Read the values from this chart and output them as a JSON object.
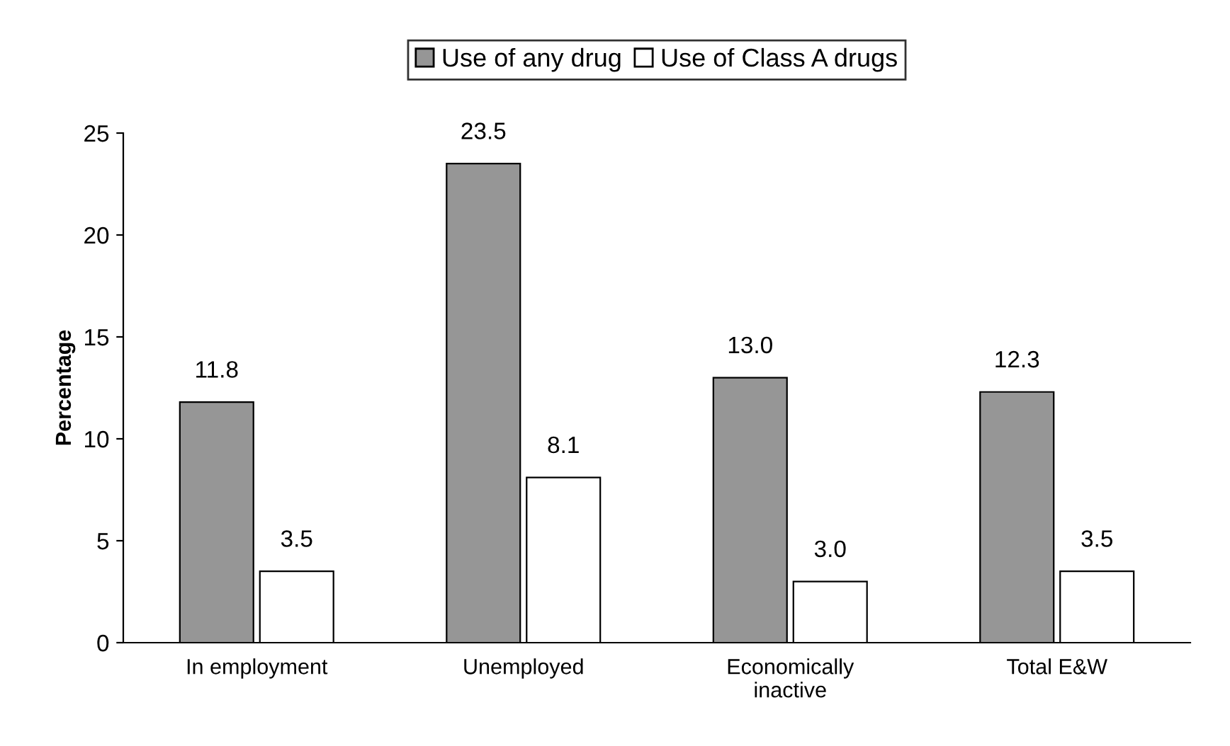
{
  "chart_data": {
    "type": "bar",
    "ylabel": "Percentage",
    "categories": [
      "In employment",
      "Unemployed",
      "Economically\ninactive",
      "Total E&W"
    ],
    "series": [
      {
        "name": "Use of any drug",
        "color": "#969696",
        "values": [
          11.8,
          23.5,
          13.0,
          12.3
        ],
        "value_labels": [
          "11.8",
          "23.5",
          "13.0",
          "12.3"
        ]
      },
      {
        "name": "Use of Class A drugs",
        "color": "#ffffff",
        "values": [
          3.5,
          8.1,
          3.0,
          3.5
        ],
        "value_labels": [
          "3.5",
          "8.1",
          "3.0",
          "3.5"
        ]
      }
    ],
    "ylim": [
      0,
      25
    ],
    "yticks": [
      0,
      5,
      10,
      15,
      20,
      25
    ],
    "grid": false,
    "legend": "top"
  }
}
